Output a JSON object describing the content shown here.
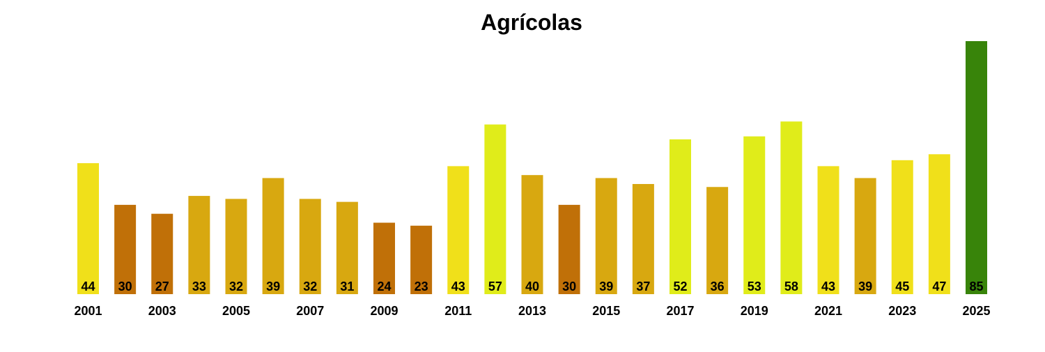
{
  "chart_data": {
    "type": "bar",
    "title": "Agrícolas",
    "xlabel": "",
    "ylabel": "",
    "ylim": [
      0,
      85
    ],
    "grid": false,
    "legend": "none",
    "categories": [
      "2001",
      "2002",
      "2003",
      "2004",
      "2005",
      "2006",
      "2007",
      "2008",
      "2009",
      "2010",
      "2011",
      "2012",
      "2013",
      "2014",
      "2015",
      "2016",
      "2017",
      "2018",
      "2019",
      "2020",
      "2021",
      "2022",
      "2023",
      "2024",
      "2025"
    ],
    "x_tick_labels": [
      "2001",
      "2003",
      "2005",
      "2007",
      "2009",
      "2011",
      "2013",
      "2015",
      "2017",
      "2019",
      "2021",
      "2023",
      "2025"
    ],
    "values": [
      44,
      30,
      27,
      33,
      32,
      39,
      32,
      31,
      24,
      23,
      43,
      57,
      40,
      30,
      39,
      37,
      52,
      36,
      53,
      58,
      43,
      39,
      45,
      47,
      85
    ],
    "colors": [
      "#f0e01a",
      "#c07008",
      "#c07008",
      "#d8a810",
      "#d8a810",
      "#d8a810",
      "#d8a810",
      "#d8a810",
      "#c07008",
      "#c07008",
      "#f0e01a",
      "#e0ec1a",
      "#d8a810",
      "#c07008",
      "#d8a810",
      "#d8a810",
      "#e0ec1a",
      "#d8a810",
      "#e0ec1a",
      "#e0ec1a",
      "#f0e01a",
      "#d8a810",
      "#f0e01a",
      "#f0e01a",
      "#38840a"
    ]
  }
}
